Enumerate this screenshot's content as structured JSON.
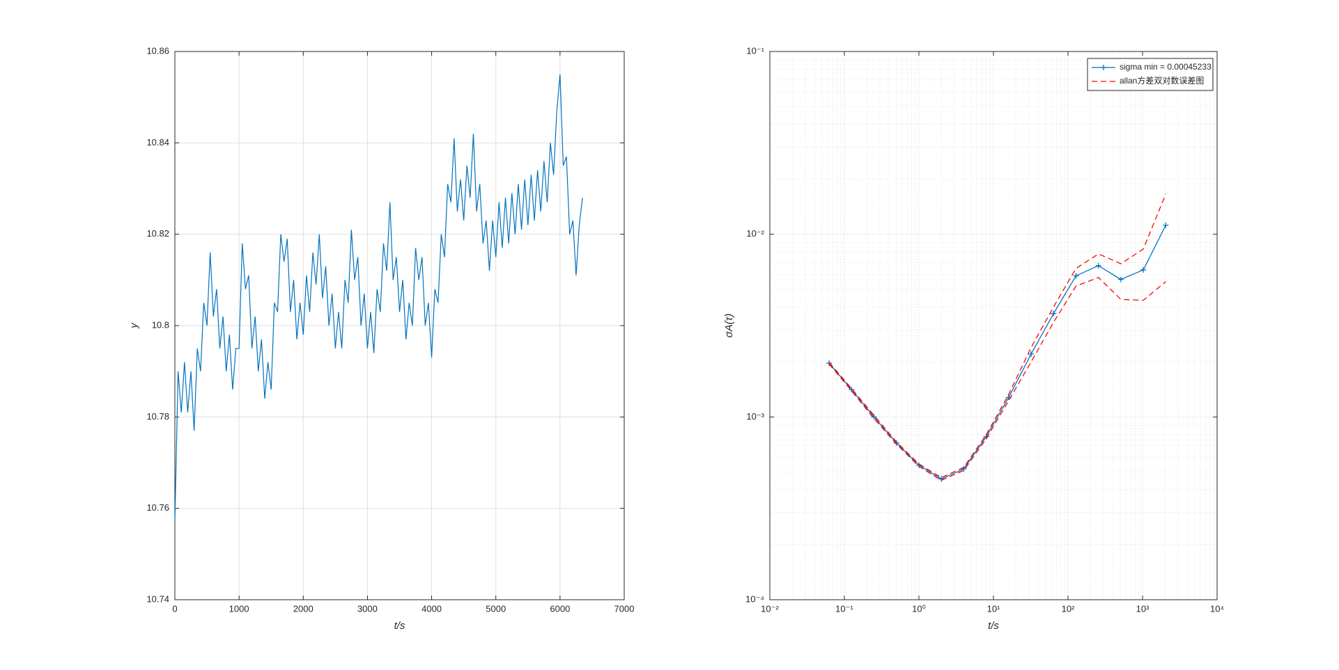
{
  "chart_data": [
    {
      "type": "line",
      "xlabel": "t/s",
      "ylabel": "y",
      "xlim": [
        0,
        7000
      ],
      "xticks": [
        0,
        1000,
        2000,
        3000,
        4000,
        5000,
        6000,
        7000
      ],
      "ylim": [
        10.74,
        10.86
      ],
      "yticks": [
        10.74,
        10.76,
        10.78,
        10.8,
        10.82,
        10.84,
        10.86
      ],
      "grid": true,
      "series": [
        {
          "color": "#0072bd",
          "x": [
            0,
            50,
            100,
            150,
            200,
            250,
            300,
            350,
            400,
            450,
            500,
            550,
            600,
            650,
            700,
            750,
            800,
            850,
            900,
            950,
            1000,
            1050,
            1100,
            1150,
            1200,
            1250,
            1300,
            1350,
            1400,
            1450,
            1500,
            1550,
            1600,
            1650,
            1700,
            1750,
            1800,
            1850,
            1900,
            1950,
            2000,
            2050,
            2100,
            2150,
            2200,
            2250,
            2300,
            2350,
            2400,
            2450,
            2500,
            2550,
            2600,
            2650,
            2700,
            2750,
            2800,
            2850,
            2900,
            2950,
            3000,
            3050,
            3100,
            3150,
            3200,
            3250,
            3300,
            3350,
            3400,
            3450,
            3500,
            3550,
            3600,
            3650,
            3700,
            3750,
            3800,
            3850,
            3900,
            3950,
            4000,
            4050,
            4100,
            4150,
            4200,
            4250,
            4300,
            4350,
            4400,
            4450,
            4500,
            4550,
            4600,
            4650,
            4700,
            4750,
            4800,
            4850,
            4900,
            4950,
            5000,
            5050,
            5100,
            5150,
            5200,
            5250,
            5300,
            5350,
            5400,
            5450,
            5500,
            5550,
            5600,
            5650,
            5700,
            5750,
            5800,
            5850,
            5900,
            5950,
            6000,
            6050,
            6100,
            6150,
            6200,
            6250,
            6300,
            6350
          ],
          "values": [
            10.757,
            10.79,
            10.781,
            10.792,
            10.781,
            10.79,
            10.777,
            10.795,
            10.79,
            10.805,
            10.8,
            10.816,
            10.802,
            10.808,
            10.795,
            10.802,
            10.79,
            10.798,
            10.786,
            10.795,
            10.795,
            10.818,
            10.808,
            10.811,
            10.795,
            10.802,
            10.79,
            10.797,
            10.784,
            10.792,
            10.786,
            10.805,
            10.803,
            10.82,
            10.814,
            10.819,
            10.803,
            10.81,
            10.797,
            10.805,
            10.798,
            10.811,
            10.803,
            10.816,
            10.809,
            10.82,
            10.806,
            10.813,
            10.8,
            10.807,
            10.795,
            10.803,
            10.795,
            10.81,
            10.805,
            10.821,
            10.81,
            10.815,
            10.8,
            10.807,
            10.795,
            10.803,
            10.794,
            10.808,
            10.803,
            10.818,
            10.812,
            10.827,
            10.81,
            10.815,
            10.803,
            10.81,
            10.797,
            10.805,
            10.8,
            10.817,
            10.81,
            10.815,
            10.8,
            10.805,
            10.793,
            10.808,
            10.805,
            10.82,
            10.815,
            10.831,
            10.827,
            10.841,
            10.825,
            10.832,
            10.823,
            10.835,
            10.828,
            10.842,
            10.825,
            10.831,
            10.818,
            10.823,
            10.812,
            10.823,
            10.815,
            10.827,
            10.817,
            10.828,
            10.818,
            10.829,
            10.82,
            10.831,
            10.821,
            10.832,
            10.822,
            10.833,
            10.823,
            10.834,
            10.825,
            10.836,
            10.827,
            10.84,
            10.833,
            10.847,
            10.855,
            10.835,
            10.837,
            10.82,
            10.823,
            10.811,
            10.822,
            10.828
          ]
        }
      ]
    },
    {
      "type": "line",
      "xlabel": "t/s",
      "ylabel": "σA(τ)",
      "log": true,
      "minor_grid": true,
      "xlim": [
        0.01,
        10000
      ],
      "xticks": [
        {
          "value": 0.01,
          "label": "10⁻²"
        },
        {
          "value": 0.1,
          "label": "10⁻¹"
        },
        {
          "value": 1,
          "label": "10⁰"
        },
        {
          "value": 10,
          "label": "10¹"
        },
        {
          "value": 100,
          "label": "10²"
        },
        {
          "value": 1000,
          "label": "10³"
        },
        {
          "value": 10000,
          "label": "10⁴"
        }
      ],
      "ylim": [
        0.0001,
        0.1
      ],
      "yticks": [
        {
          "value": 0.0001,
          "label": "10⁻⁴"
        },
        {
          "value": 0.001,
          "label": "10⁻³"
        },
        {
          "value": 0.01,
          "label": "10⁻²"
        },
        {
          "value": 0.1,
          "label": "10⁻¹"
        }
      ],
      "grid": true,
      "legend": "upper right",
      "series": [
        {
          "name": "sigma min = 0.00045233",
          "color": "#0072bd",
          "marker": "+",
          "x": [
            0.0625,
            0.125,
            0.25,
            0.5,
            1,
            2,
            4,
            8,
            16,
            32,
            64,
            128,
            256,
            512,
            1024,
            2048
          ],
          "values": [
            0.00197,
            0.00141,
            0.001,
            0.00072,
            0.000545,
            0.000458,
            0.00052,
            0.00078,
            0.00128,
            0.00221,
            0.00368,
            0.00592,
            0.00673,
            0.00566,
            0.00638,
            0.0112
          ]
        },
        {
          "name": "allan方差双对数误差图",
          "color": "#ff0000",
          "dash": true,
          "x": [
            0.0625,
            0.125,
            0.25,
            0.5,
            1,
            2,
            4,
            8,
            16,
            32,
            64,
            128,
            256,
            512,
            1024,
            2048
          ],
          "values": [
            0.00199,
            0.00143,
            0.00102,
            0.00073,
            0.000553,
            0.000466,
            0.00053,
            0.0008,
            0.00133,
            0.0024,
            0.004,
            0.0065,
            0.0078,
            0.0069,
            0.0083,
            0.0166
          ]
        },
        {
          "color": "#ff0000",
          "dash": true,
          "x": [
            0.0625,
            0.125,
            0.25,
            0.5,
            1,
            2,
            4,
            8,
            16,
            32,
            64,
            128,
            256,
            512,
            1024,
            2048
          ],
          "values": [
            0.00195,
            0.00139,
            0.00098,
            0.00071,
            0.000537,
            0.00045,
            0.00051,
            0.00076,
            0.00123,
            0.002,
            0.0033,
            0.0052,
            0.0058,
            0.0044,
            0.00435,
            0.0055
          ]
        }
      ]
    }
  ]
}
